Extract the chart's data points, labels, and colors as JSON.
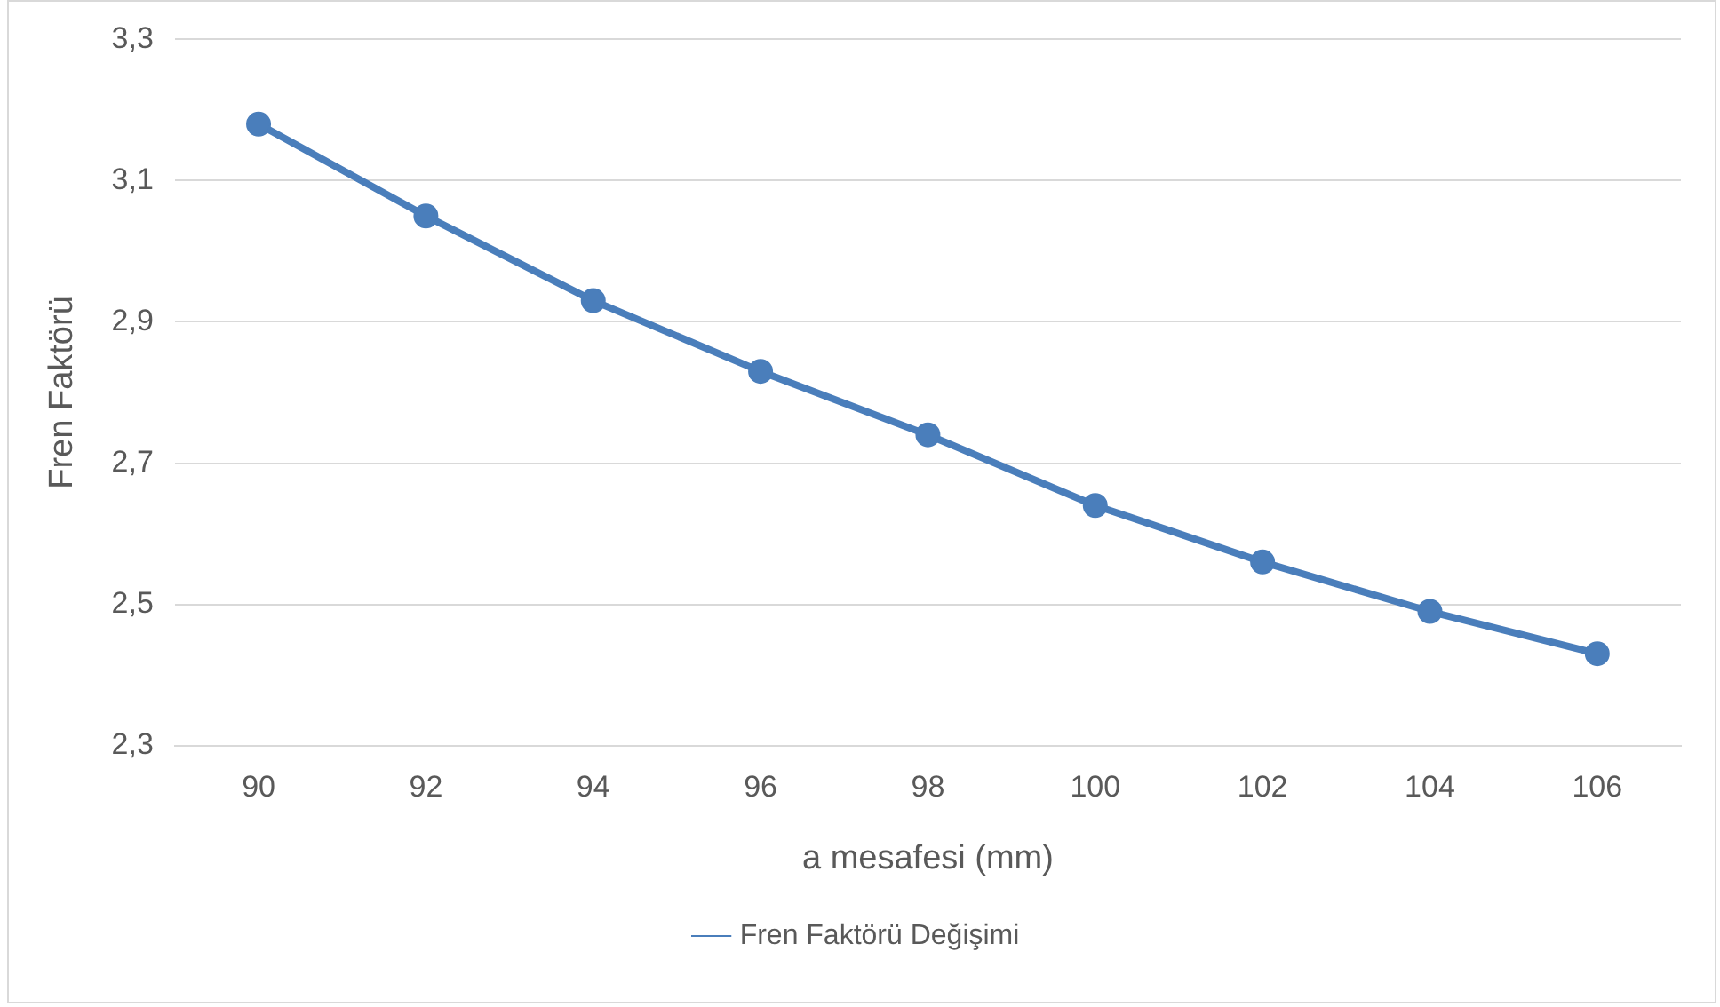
{
  "chart_data": {
    "type": "line",
    "xlabel": "a mesafesi (mm)",
    "ylabel": "Fren Faktörü",
    "categories": [
      "90",
      "92",
      "94",
      "96",
      "98",
      "100",
      "102",
      "104",
      "106"
    ],
    "series": [
      {
        "name": "Fren Faktörü Değişimi",
        "color": "#4a7ebb",
        "values": [
          3.18,
          3.05,
          2.93,
          2.83,
          2.74,
          2.64,
          2.56,
          2.49,
          2.43
        ]
      }
    ],
    "ylim": [
      2.3,
      3.3
    ],
    "yticks": [
      {
        "value": 2.3,
        "label": "2,3"
      },
      {
        "value": 2.5,
        "label": "2,5"
      },
      {
        "value": 2.7,
        "label": "2,7"
      },
      {
        "value": 2.9,
        "label": "2,9"
      },
      {
        "value": 3.1,
        "label": "3,1"
      },
      {
        "value": 3.3,
        "label": "3,3"
      }
    ],
    "grid": "y",
    "legend": "bottom",
    "marker": "circle",
    "line_style": "solid"
  }
}
